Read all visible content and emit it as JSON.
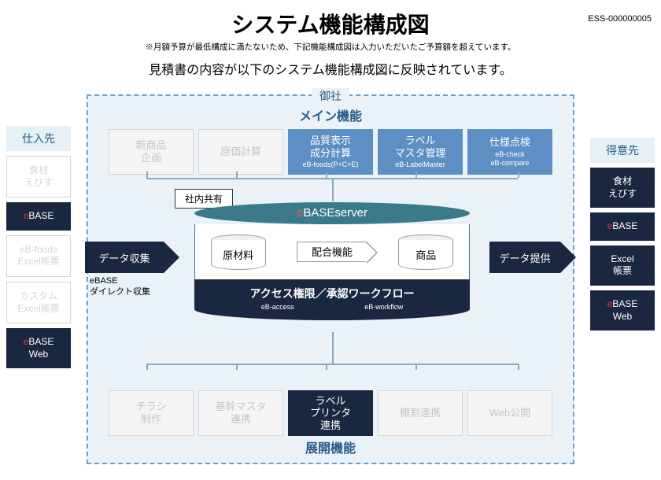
{
  "doc_id": "ESS-000000005",
  "title": "システム機能構成図",
  "note": "※月額予算が最低構成に満たないため、下記機能構成図は入力いただいたご予算額を超えています。",
  "subtitle": "見積書の内容が以下のシステム機能構成図に反映されています。",
  "frame_label": "御社",
  "main_section": "メイン機能",
  "expand_section": "展開機能",
  "left_side": {
    "header": "仕入先",
    "items": [
      {
        "label": "食材\nえびす",
        "style": "ghost"
      },
      {
        "label": "eBASE",
        "style": "dark",
        "red_prefix": "e",
        "rest": "BASE"
      },
      {
        "label": "eB-foods\nExcel帳票",
        "style": "ghost"
      },
      {
        "label": "カスタム\nExcel帳票",
        "style": "ghost"
      },
      {
        "label": "eBASE\nWeb",
        "style": "dark",
        "red_prefix": "e",
        "rest": "BASE\nWeb"
      }
    ]
  },
  "right_side": {
    "header": "得意先",
    "items": [
      {
        "label": "食材\nえびす",
        "style": "dark"
      },
      {
        "label": "eBASE",
        "style": "dark",
        "red_prefix": "e",
        "rest": "BASE"
      },
      {
        "label": "Excel\n帳票",
        "style": "dark"
      },
      {
        "label": "eBASE\nWeb",
        "style": "dark",
        "red_prefix": "e",
        "rest": "BASE\nWeb"
      }
    ]
  },
  "top_functions": [
    {
      "label": "新商品\n企画",
      "style": "ghost"
    },
    {
      "label": "原価計算",
      "style": "ghost"
    },
    {
      "label": "品質表示\n成分計算",
      "sub": "eB-foods(P+C+E)",
      "style": "blue"
    },
    {
      "label": "ラベル\nマスタ管理",
      "sub": "eB-LabelMaster",
      "style": "blue"
    },
    {
      "label": "仕様点検",
      "sub": "eB-check\neB-compare",
      "style": "blue"
    }
  ],
  "bottom_functions": [
    {
      "label": "チラシ\n制作",
      "style": "ghost"
    },
    {
      "label": "基幹マスタ\n連携",
      "style": "ghost"
    },
    {
      "label": "ラベル\nプリンタ\n連携",
      "style": "dark"
    },
    {
      "label": "棚割連携",
      "style": "ghost"
    },
    {
      "label": "Web公開",
      "style": "ghost"
    }
  ],
  "share_label": "社内共有",
  "server": {
    "name_prefix": "e",
    "name_rest": "BASEserver",
    "cyl1": "原材料",
    "blend": "配合機能",
    "cyl2": "商品",
    "access": "アクセス権限／承認ワークフロー",
    "access_sub1": "eB-access",
    "access_sub2": "eB-workflow"
  },
  "arrow_left": "データ収集",
  "arrow_left_sub": "eBASE\nダイレクト収集",
  "arrow_right": "データ提供",
  "colors": {
    "frame_border": "#6a9fc9",
    "frame_bg": "#eaf2f8",
    "dark": "#1a2740",
    "blue": "#5d8fc4",
    "teal": "#3a7a8a",
    "ghost_text": "#c5c5c5",
    "red": "#d43a3a"
  }
}
